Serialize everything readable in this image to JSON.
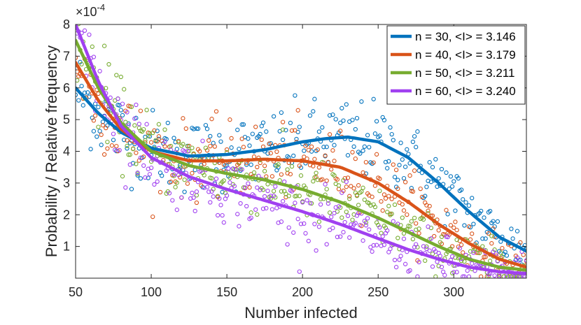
{
  "chart_data": {
    "type": "scatter",
    "xlabel": "Number infected",
    "ylabel": "Probability / Relative frequency",
    "xlim": [
      50,
      348
    ],
    "ylim": [
      0,
      8
    ],
    "y_multiplier": "×10",
    "y_multiplier_exponent": "-4",
    "xticks": [
      "50",
      "100",
      "150",
      "200",
      "250",
      "300"
    ],
    "yticks": [
      "1",
      "2",
      "3",
      "4",
      "5",
      "6",
      "7",
      "8"
    ],
    "legend_position": "top-right",
    "series": [
      {
        "name": "n = 30, <I> = 3.146",
        "color": "#0072BD",
        "fit": [
          [
            50,
            6.0
          ],
          [
            65,
            5.2
          ],
          [
            80,
            4.6
          ],
          [
            100,
            4.1
          ],
          [
            125,
            3.85
          ],
          [
            150,
            3.9
          ],
          [
            175,
            4.05
          ],
          [
            200,
            4.3
          ],
          [
            215,
            4.4
          ],
          [
            230,
            4.45
          ],
          [
            250,
            4.3
          ],
          [
            270,
            3.8
          ],
          [
            290,
            3.0
          ],
          [
            310,
            2.1
          ],
          [
            330,
            1.3
          ],
          [
            348,
            0.85
          ]
        ]
      },
      {
        "name": "n = 40, <I> = 3.179",
        "color": "#D95319",
        "fit": [
          [
            50,
            6.8
          ],
          [
            65,
            5.6
          ],
          [
            80,
            4.7
          ],
          [
            100,
            4.0
          ],
          [
            125,
            3.7
          ],
          [
            150,
            3.7
          ],
          [
            175,
            3.75
          ],
          [
            200,
            3.7
          ],
          [
            225,
            3.5
          ],
          [
            250,
            3.0
          ],
          [
            270,
            2.4
          ],
          [
            290,
            1.7
          ],
          [
            310,
            1.1
          ],
          [
            330,
            0.6
          ],
          [
            348,
            0.35
          ]
        ]
      },
      {
        "name": "n = 50, <I> = 3.211",
        "color": "#77AC30",
        "fit": [
          [
            50,
            7.5
          ],
          [
            65,
            6.0
          ],
          [
            80,
            4.9
          ],
          [
            100,
            4.0
          ],
          [
            125,
            3.55
          ],
          [
            150,
            3.3
          ],
          [
            175,
            3.1
          ],
          [
            200,
            2.8
          ],
          [
            225,
            2.4
          ],
          [
            250,
            1.9
          ],
          [
            270,
            1.45
          ],
          [
            290,
            1.0
          ],
          [
            310,
            0.6
          ],
          [
            330,
            0.35
          ],
          [
            348,
            0.25
          ]
        ]
      },
      {
        "name": "n = 60, <I> = 3.240",
        "color": "#A040F0",
        "fit": [
          [
            50,
            8.0
          ],
          [
            65,
            6.2
          ],
          [
            80,
            4.8
          ],
          [
            100,
            3.8
          ],
          [
            125,
            3.2
          ],
          [
            150,
            2.8
          ],
          [
            175,
            2.45
          ],
          [
            200,
            2.1
          ],
          [
            225,
            1.7
          ],
          [
            250,
            1.25
          ],
          [
            270,
            0.9
          ],
          [
            290,
            0.6
          ],
          [
            310,
            0.35
          ],
          [
            330,
            0.2
          ],
          [
            348,
            0.15
          ]
        ]
      }
    ]
  }
}
